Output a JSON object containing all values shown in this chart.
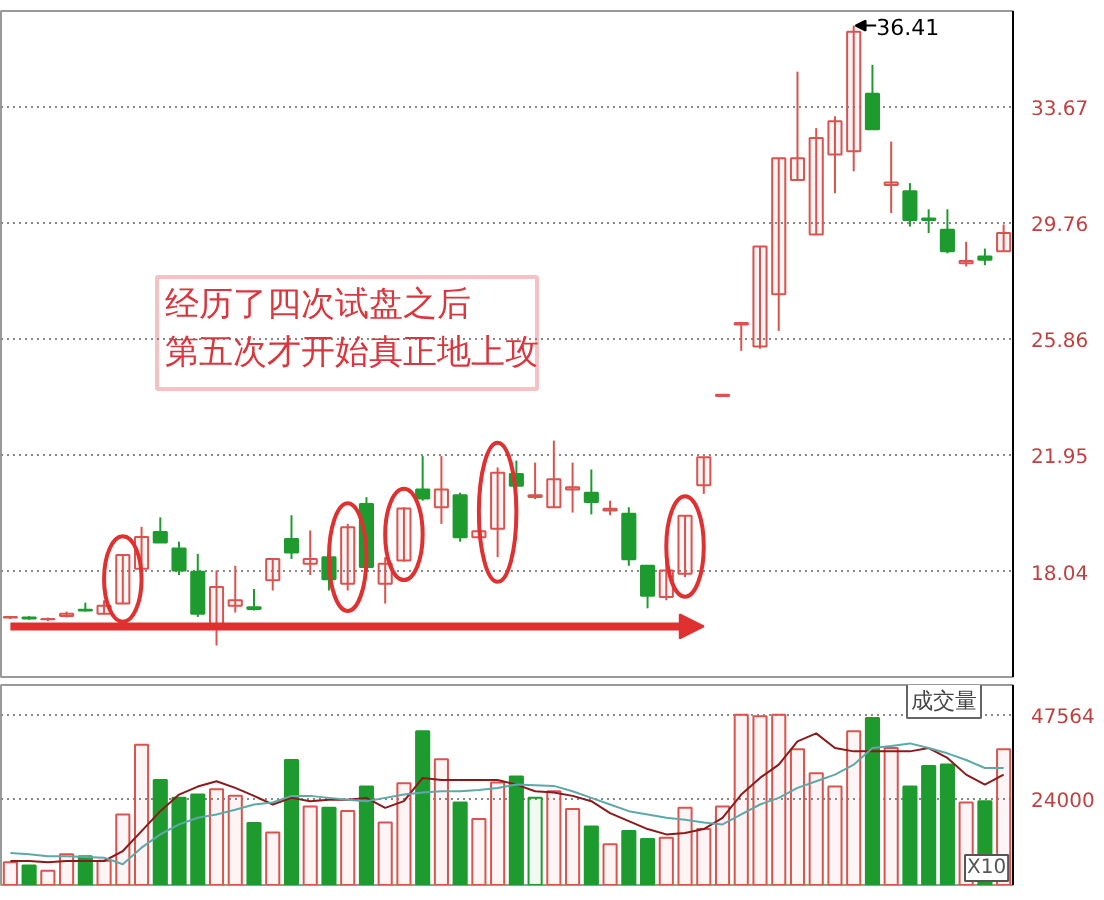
{
  "chart_data": [
    {
      "type": "candlestick",
      "categories": [
        null,
        null,
        null,
        null,
        null,
        null,
        null,
        null,
        null,
        null,
        null,
        null,
        null,
        null,
        null,
        null,
        null,
        null,
        null,
        null,
        null,
        null,
        null,
        null,
        null,
        null,
        null,
        null,
        null,
        null,
        null,
        null,
        null,
        null,
        null,
        null,
        null,
        null,
        null,
        null,
        null,
        null,
        null,
        null,
        null,
        null,
        null,
        null,
        null,
        null,
        null,
        null,
        null,
        null
      ],
      "ohlc": [
        [
          16.5,
          16.55,
          16.45,
          16.52
        ],
        [
          16.5,
          16.55,
          16.42,
          16.47
        ],
        [
          16.44,
          16.5,
          16.38,
          16.45
        ],
        [
          16.55,
          16.7,
          16.5,
          16.63
        ],
        [
          16.76,
          17.0,
          16.7,
          16.74
        ],
        [
          16.63,
          17.08,
          16.6,
          16.9
        ],
        [
          16.97,
          18.64,
          16.95,
          18.6
        ],
        [
          18.14,
          19.55,
          17.64,
          19.21
        ],
        [
          19.38,
          19.87,
          19.02,
          19.02
        ],
        [
          18.82,
          19.05,
          17.93,
          18.08
        ],
        [
          18.04,
          18.64,
          16.52,
          16.63
        ],
        [
          16.23,
          18.08,
          15.56,
          17.53
        ],
        [
          16.9,
          18.24,
          16.67,
          17.08
        ],
        [
          16.85,
          17.46,
          16.74,
          16.79
        ],
        [
          17.75,
          18.47,
          17.41,
          18.47
        ],
        [
          19.14,
          19.94,
          18.47,
          18.69
        ],
        [
          18.31,
          19.43,
          17.93,
          18.47
        ],
        [
          18.53,
          18.69,
          17.41,
          17.79
        ],
        [
          17.64,
          19.65,
          17.41,
          19.54
        ],
        [
          20.32,
          20.55,
          18.08,
          18.2
        ],
        [
          17.64,
          18.53,
          16.97,
          18.31
        ],
        [
          18.42,
          20.21,
          18.38,
          20.17
        ],
        [
          20.81,
          21.93,
          20.43,
          20.5
        ],
        [
          20.21,
          21.93,
          19.65,
          20.81
        ],
        [
          20.61,
          20.7,
          19.05,
          19.2
        ],
        [
          19.2,
          20.39,
          19.2,
          19.4
        ],
        [
          19.49,
          21.55,
          18.53,
          21.37
        ],
        [
          21.33,
          21.78,
          20.88,
          20.93
        ],
        [
          20.55,
          21.71,
          20.48,
          20.61
        ],
        [
          20.21,
          22.45,
          20.21,
          21.15
        ],
        [
          20.81,
          21.71,
          20.03,
          20.88
        ],
        [
          20.7,
          21.48,
          19.97,
          20.39
        ],
        [
          20.1,
          20.43,
          19.94,
          20.16
        ],
        [
          19.99,
          20.21,
          18.24,
          18.46
        ],
        [
          18.24,
          18.24,
          16.81,
          17.23
        ],
        [
          17.19,
          18.64,
          17.08,
          18.08
        ],
        [
          17.97,
          19.92,
          17.86,
          19.92
        ],
        [
          20.95,
          21.89,
          20.66,
          21.89
        ],
        [
          23.95,
          24.0,
          23.95,
          23.99
        ],
        [
          26.36,
          26.41,
          25.47,
          26.41
        ],
        [
          25.62,
          28.98,
          25.54,
          28.98
        ],
        [
          27.37,
          31.95,
          26.14,
          31.95
        ],
        [
          31.22,
          34.86,
          31.22,
          31.95
        ],
        [
          29.38,
          32.96,
          29.38,
          32.63
        ],
        [
          32.07,
          33.36,
          30.77,
          33.19
        ],
        [
          32.18,
          36.41,
          31.51,
          36.2
        ],
        [
          34.12,
          35.09,
          32.92,
          32.92
        ],
        [
          31.05,
          32.51,
          30.1,
          31.13
        ],
        [
          30.84,
          31.11,
          29.65,
          29.87
        ],
        [
          29.92,
          30.23,
          29.43,
          29.87
        ],
        [
          29.54,
          30.23,
          28.75,
          28.82
        ],
        [
          28.42,
          29.14,
          28.31,
          28.49
        ],
        [
          28.64,
          28.91,
          28.35,
          28.53
        ],
        [
          28.82,
          29.72,
          28.82,
          29.43
        ]
      ],
      "colors": [
        "#d9534f",
        "#1e9b2f",
        "#d9534f",
        "#d9534f",
        "#1e9b2f",
        "#d9534f",
        "#d9534f",
        "#d9534f",
        "#1e9b2f",
        "#1e9b2f",
        "#1e9b2f",
        "#d9534f",
        "#d9534f",
        "#1e9b2f",
        "#d9534f",
        "#1e9b2f",
        "#d9534f",
        "#1e9b2f",
        "#d9534f",
        "#1e9b2f",
        "#d9534f",
        "#d9534f",
        "#1e9b2f",
        "#d9534f",
        "#1e9b2f",
        "#d9534f",
        "#d9534f",
        "#1e9b2f",
        "#d9534f",
        "#d9534f",
        "#d9534f",
        "#1e9b2f",
        "#d9534f",
        "#1e9b2f",
        "#1e9b2f",
        "#d9534f",
        "#d9534f",
        "#d9534f",
        "#d9534f",
        "#d9534f",
        "#d9534f",
        "#d9534f",
        "#d9534f",
        "#d9534f",
        "#d9534f",
        "#d9534f",
        "#1e9b2f",
        "#d9534f",
        "#1e9b2f",
        "#1e9b2f",
        "#1e9b2f",
        "#d9534f",
        "#1e9b2f",
        "#d9534f"
      ],
      "ylim": [
        14.5,
        36.9
      ],
      "yticks": [
        18.04,
        21.95,
        25.86,
        29.76,
        33.67
      ],
      "grid": "y",
      "tick_labels": "y",
      "annotations": [
        "经历了四次试盘之后",
        "第五次才开始真正地上攻",
        "36.41"
      ]
    },
    {
      "type": "bar",
      "title": "成交量",
      "categories": [
        null,
        null,
        null,
        null,
        null,
        null,
        null,
        null,
        null,
        null,
        null,
        null,
        null,
        null,
        null,
        null,
        null,
        null,
        null,
        null,
        null,
        null,
        null,
        null,
        null,
        null,
        null,
        null,
        null,
        null,
        null,
        null,
        null,
        null,
        null,
        null,
        null,
        null,
        null,
        null,
        null,
        null,
        null,
        null,
        null,
        null,
        null,
        null,
        null,
        null,
        null,
        null,
        null,
        null
      ],
      "series": [
        {
          "type": "bar",
          "values": [
            6350,
            5430,
            3960,
            8600,
            8070,
            6770,
            19720,
            39210,
            29370,
            24360,
            25290,
            26780,
            24920,
            17300,
            14700,
            34940,
            21950,
            21580,
            20650,
            27520,
            17490,
            28450,
            42940,
            35140,
            23070,
            18420,
            28640,
            30310,
            24360,
            26220,
            21210,
            16380,
            11370,
            15080,
            12850,
            13220,
            21580,
            15640,
            21950,
            47560,
            47200,
            47560,
            37910,
            31220,
            27520,
            42940,
            46660,
            38280,
            27520,
            33280,
            33650,
            23070,
            23440,
            37910
          ],
          "colors": [
            "#d9534f",
            "#1e9b2f",
            "#d9534f",
            "#d9534f",
            "#1e9b2f",
            "#d9534f",
            "#d9534f",
            "#d9534f",
            "#1e9b2f",
            "#1e9b2f",
            "#1e9b2f",
            "#d9534f",
            "#d9534f",
            "#1e9b2f",
            "#d9534f",
            "#1e9b2f",
            "#d9534f",
            "#1e9b2f",
            "#d9534f",
            "#1e9b2f",
            "#d9534f",
            "#d9534f",
            "#1e9b2f",
            "#d9534f",
            "#1e9b2f",
            "#d9534f",
            "#d9534f",
            "#1e9b2f",
            "#1e9b2f",
            "#d9534f",
            "#d9534f",
            "#1e9b2f",
            "#d9534f",
            "#1e9b2f",
            "#1e9b2f",
            "#d9534f",
            "#d9534f",
            "#d9534f",
            "#d9534f",
            "#d9534f",
            "#d9534f",
            "#d9534f",
            "#d9534f",
            "#d9534f",
            "#d9534f",
            "#d9534f",
            "#1e9b2f",
            "#d9534f",
            "#1e9b2f",
            "#1e9b2f",
            "#1e9b2f",
            "#d9534f",
            "#1e9b2f",
            "#d9534f"
          ]
        },
        {
          "type": "line",
          "color": "#8b1a1a",
          "values": [
            6710,
            6710,
            6340,
            6710,
            6710,
            6710,
            9500,
            15070,
            20640,
            25280,
            27510,
            28990,
            27140,
            24910,
            22500,
            24350,
            23430,
            23800,
            23800,
            24350,
            21570,
            23430,
            29930,
            29370,
            29370,
            29370,
            29370,
            28070,
            26210,
            25840,
            24910,
            23430,
            20080,
            17860,
            15630,
            14140,
            14510,
            15630,
            18780,
            25280,
            29930,
            33640,
            40140,
            42370,
            38280,
            37350,
            37350,
            37350,
            37350,
            38280,
            35500,
            30850,
            28070,
            30850
          ]
        },
        {
          "type": "line",
          "color": "#5fa8a8",
          "values": [
            8940,
            8570,
            8010,
            8010,
            7830,
            7640,
            5790,
            10430,
            14140,
            16930,
            18780,
            19710,
            21010,
            22500,
            23060,
            24910,
            24910,
            24350,
            23800,
            23430,
            24350,
            25280,
            25840,
            26210,
            26210,
            26580,
            27140,
            28070,
            27880,
            27700,
            26210,
            24350,
            22500,
            20640,
            19710,
            18780,
            18230,
            17480,
            16930,
            19710,
            22500,
            24350,
            27140,
            28990,
            30850,
            33640,
            38280,
            38840,
            39580,
            38280,
            36800,
            34940,
            32710,
            32710
          ]
        }
      ],
      "ylim": [
        0,
        55900
      ],
      "yticks": [
        24000,
        47564
      ],
      "grid": "y",
      "tick_labels": "y",
      "annotations": [
        "X10"
      ]
    }
  ]
}
